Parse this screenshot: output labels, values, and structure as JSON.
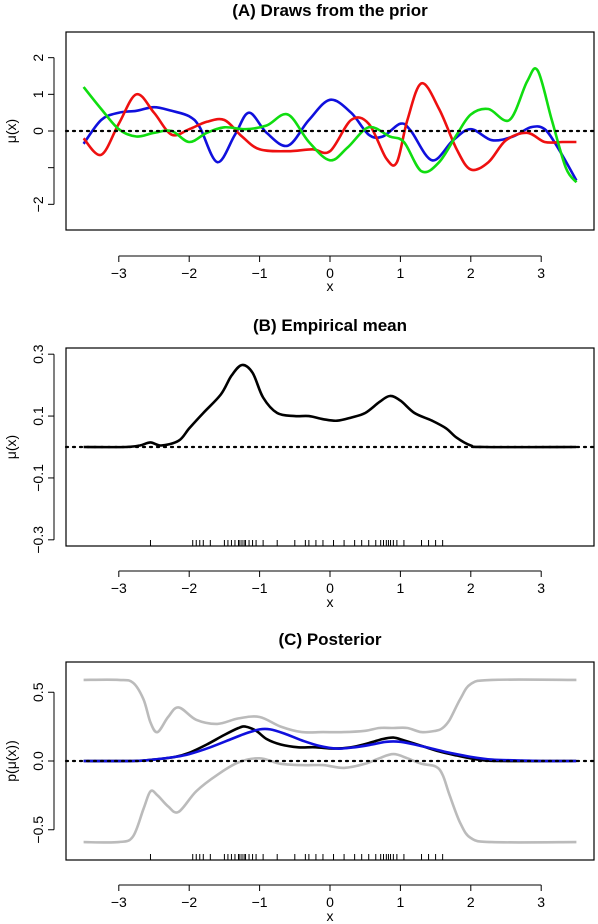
{
  "chart_data": [
    {
      "panel": "A",
      "type": "line",
      "title": "(A) Draws from the prior",
      "xlabel": "x",
      "ylabel": "μ(x)",
      "xlim": [
        -3.75,
        3.75
      ],
      "ylim": [
        -2.7,
        2.7
      ],
      "x_ticks": [
        -3,
        -2,
        -1,
        0,
        1,
        2,
        3
      ],
      "x_tick_labels": [
        "−3",
        "−2",
        "−1",
        "0",
        "1",
        "2",
        "3"
      ],
      "y_ticks": [
        -2,
        -1,
        0,
        1,
        2
      ],
      "y_tick_labels": [
        "−2",
        "",
        "0",
        "1",
        "2"
      ],
      "reference_line": 0,
      "series": [
        {
          "color": "#1010dd",
          "x": [
            -3.5,
            -3.25,
            -3.0,
            -2.75,
            -2.5,
            -2.25,
            -2.0,
            -1.85,
            -1.6,
            -1.35,
            -1.15,
            -0.9,
            -0.6,
            -0.3,
            0.0,
            0.3,
            0.55,
            0.75,
            1.0,
            1.15,
            1.45,
            1.75,
            2.0,
            2.3,
            2.6,
            2.85,
            3.05,
            3.25,
            3.5
          ],
          "y": [
            -0.35,
            0.3,
            0.5,
            0.55,
            0.65,
            0.55,
            0.4,
            0.1,
            -0.85,
            -0.1,
            0.5,
            -0.05,
            -0.4,
            0.3,
            0.85,
            0.5,
            -0.1,
            -0.15,
            0.2,
            0.0,
            -0.8,
            -0.25,
            0.05,
            -0.25,
            -0.15,
            0.1,
            0.05,
            -0.5,
            -1.35
          ]
        },
        {
          "color": "#ee1010",
          "x": [
            -3.5,
            -3.25,
            -3.0,
            -2.75,
            -2.5,
            -2.25,
            -2.0,
            -1.75,
            -1.5,
            -1.25,
            -1.0,
            -0.6,
            -0.25,
            0.0,
            0.3,
            0.55,
            0.8,
            0.95,
            1.1,
            1.3,
            1.55,
            1.8,
            2.0,
            2.25,
            2.5,
            2.8,
            3.05,
            3.3,
            3.5
          ],
          "y": [
            -0.2,
            -0.65,
            0.2,
            1.0,
            0.5,
            -0.1,
            0.05,
            0.25,
            0.3,
            -0.15,
            -0.5,
            -0.55,
            -0.5,
            -0.55,
            0.3,
            0.2,
            -0.75,
            -0.85,
            0.3,
            1.3,
            0.6,
            -0.5,
            -1.05,
            -0.85,
            -0.25,
            -0.05,
            -0.3,
            -0.3,
            -0.3
          ]
        },
        {
          "color": "#10dd10",
          "x": [
            -3.5,
            -3.25,
            -3.0,
            -2.75,
            -2.5,
            -2.25,
            -2.0,
            -1.75,
            -1.5,
            -1.2,
            -0.9,
            -0.6,
            -0.3,
            0.0,
            0.25,
            0.55,
            0.85,
            1.05,
            1.3,
            1.55,
            1.8,
            2.0,
            2.25,
            2.55,
            2.8,
            2.95,
            3.15,
            3.35,
            3.5
          ],
          "y": [
            1.2,
            0.6,
            0.05,
            -0.15,
            -0.05,
            0.0,
            -0.3,
            -0.05,
            0.1,
            0.05,
            0.15,
            0.45,
            -0.3,
            -0.8,
            -0.45,
            0.1,
            -0.15,
            -0.3,
            -1.1,
            -0.85,
            -0.1,
            0.45,
            0.6,
            0.3,
            1.35,
            1.65,
            0.3,
            -1.0,
            -1.4
          ]
        }
      ]
    },
    {
      "panel": "B",
      "type": "line",
      "title": "(B) Empirical mean",
      "xlabel": "x",
      "ylabel": "μ(x)",
      "xlim": [
        -3.75,
        3.75
      ],
      "ylim": [
        -0.32,
        0.32
      ],
      "x_ticks": [
        -3,
        -2,
        -1,
        0,
        1,
        2,
        3
      ],
      "x_tick_labels": [
        "−3",
        "−2",
        "−1",
        "0",
        "1",
        "2",
        "3"
      ],
      "y_ticks": [
        -0.3,
        -0.1,
        0.1,
        0.3
      ],
      "y_tick_labels": [
        "−0.3",
        "−0.1",
        "0.1",
        "0.3"
      ],
      "reference_line": 0,
      "series": [
        {
          "color": "#000000",
          "x": [
            -3.5,
            -2.9,
            -2.7,
            -2.55,
            -2.4,
            -2.15,
            -2.0,
            -1.8,
            -1.55,
            -1.4,
            -1.25,
            -1.1,
            -0.95,
            -0.75,
            -0.5,
            -0.3,
            -0.1,
            0.1,
            0.3,
            0.5,
            0.7,
            0.85,
            1.0,
            1.2,
            1.45,
            1.65,
            1.8,
            2.0,
            2.2,
            3.5
          ],
          "y": [
            0.0,
            0.0,
            0.005,
            0.015,
            0.005,
            0.02,
            0.06,
            0.11,
            0.17,
            0.23,
            0.265,
            0.24,
            0.16,
            0.11,
            0.1,
            0.1,
            0.09,
            0.085,
            0.095,
            0.11,
            0.145,
            0.165,
            0.15,
            0.11,
            0.085,
            0.06,
            0.03,
            0.005,
            0.0,
            0.0
          ]
        }
      ],
      "rug_x": [
        -2.55,
        -1.95,
        -1.9,
        -1.85,
        -1.8,
        -1.7,
        -1.5,
        -1.45,
        -1.4,
        -1.35,
        -1.3,
        -1.28,
        -1.25,
        -1.22,
        -1.2,
        -1.15,
        -1.1,
        -1.05,
        -0.95,
        -0.75,
        -0.5,
        -0.35,
        -0.3,
        -0.2,
        -0.1,
        0.05,
        0.2,
        0.35,
        0.45,
        0.55,
        0.65,
        0.72,
        0.76,
        0.8,
        0.83,
        0.86,
        0.9,
        0.95,
        1.05,
        1.3,
        1.4,
        1.5,
        1.6
      ]
    },
    {
      "panel": "C",
      "type": "line",
      "title": "(C) Posterior",
      "xlabel": "x",
      "ylabel": "p(μ(x))",
      "xlim": [
        -3.75,
        3.75
      ],
      "ylim": [
        -0.72,
        0.72
      ],
      "x_ticks": [
        -3,
        -2,
        -1,
        0,
        1,
        2,
        3
      ],
      "x_tick_labels": [
        "−3",
        "−2",
        "−1",
        "0",
        "1",
        "2",
        "3"
      ],
      "y_ticks": [
        -0.5,
        0.0,
        0.5
      ],
      "y_tick_labels": [
        "−0.5",
        "0.0",
        "0.5"
      ],
      "reference_line": 0,
      "series": [
        {
          "color": "#bbbbbb",
          "x": [
            -3.5,
            -3.0,
            -2.8,
            -2.65,
            -2.55,
            -2.45,
            -2.3,
            -2.15,
            -1.9,
            -1.6,
            -1.3,
            -1.0,
            -0.7,
            -0.4,
            -0.1,
            0.2,
            0.5,
            0.7,
            0.9,
            1.1,
            1.3,
            1.5,
            1.6,
            1.7,
            1.85,
            2.0,
            2.3,
            3.5
          ],
          "y": [
            0.59,
            0.59,
            0.57,
            0.45,
            0.28,
            0.21,
            0.32,
            0.39,
            0.3,
            0.27,
            0.31,
            0.32,
            0.25,
            0.21,
            0.21,
            0.21,
            0.22,
            0.24,
            0.24,
            0.24,
            0.21,
            0.22,
            0.24,
            0.3,
            0.45,
            0.56,
            0.59,
            0.59
          ]
        },
        {
          "color": "#bbbbbb",
          "x": [
            -3.5,
            -3.0,
            -2.8,
            -2.65,
            -2.55,
            -2.45,
            -2.3,
            -2.15,
            -1.9,
            -1.6,
            -1.3,
            -1.0,
            -0.7,
            -0.4,
            -0.1,
            0.2,
            0.5,
            0.7,
            0.9,
            1.1,
            1.3,
            1.5,
            1.6,
            1.7,
            1.85,
            2.0,
            2.3,
            3.5
          ],
          "y": [
            -0.59,
            -0.59,
            -0.55,
            -0.35,
            -0.22,
            -0.25,
            -0.33,
            -0.37,
            -0.22,
            -0.1,
            -0.01,
            0.02,
            -0.02,
            -0.03,
            -0.03,
            -0.05,
            -0.02,
            0.02,
            0.05,
            0.02,
            -0.02,
            -0.04,
            -0.1,
            -0.25,
            -0.45,
            -0.56,
            -0.59,
            -0.59
          ]
        },
        {
          "color": "#000000",
          "x": [
            -3.5,
            -2.8,
            -2.5,
            -2.2,
            -2.0,
            -1.75,
            -1.5,
            -1.3,
            -1.2,
            -1.05,
            -0.9,
            -0.7,
            -0.45,
            -0.2,
            0.05,
            0.3,
            0.55,
            0.75,
            0.9,
            1.05,
            1.3,
            1.55,
            1.8,
            2.1,
            2.4,
            3.5
          ],
          "y": [
            0.0,
            0.0,
            0.01,
            0.03,
            0.06,
            0.12,
            0.19,
            0.24,
            0.25,
            0.22,
            0.16,
            0.12,
            0.1,
            0.1,
            0.09,
            0.1,
            0.13,
            0.16,
            0.17,
            0.15,
            0.11,
            0.07,
            0.04,
            0.01,
            0.0,
            0.0
          ]
        },
        {
          "color": "#1010dd",
          "x": [
            -3.5,
            -2.8,
            -2.5,
            -2.2,
            -2.0,
            -1.7,
            -1.4,
            -1.2,
            -1.0,
            -0.85,
            -0.65,
            -0.4,
            -0.15,
            0.1,
            0.35,
            0.6,
            0.8,
            1.0,
            1.2,
            1.45,
            1.7,
            2.0,
            2.3,
            2.6,
            3.0,
            3.5
          ],
          "y": [
            0.0,
            0.0,
            0.01,
            0.03,
            0.05,
            0.1,
            0.16,
            0.2,
            0.23,
            0.23,
            0.2,
            0.15,
            0.11,
            0.09,
            0.1,
            0.12,
            0.14,
            0.14,
            0.12,
            0.09,
            0.06,
            0.03,
            0.01,
            0.005,
            0.0,
            0.0
          ]
        }
      ],
      "rug_x": [
        -2.55,
        -1.95,
        -1.9,
        -1.85,
        -1.8,
        -1.7,
        -1.5,
        -1.45,
        -1.4,
        -1.35,
        -1.3,
        -1.28,
        -1.25,
        -1.22,
        -1.2,
        -1.15,
        -1.1,
        -1.05,
        -0.95,
        -0.75,
        -0.5,
        -0.35,
        -0.3,
        -0.2,
        -0.1,
        0.05,
        0.2,
        0.35,
        0.45,
        0.55,
        0.65,
        0.72,
        0.76,
        0.8,
        0.83,
        0.86,
        0.9,
        0.95,
        1.05,
        1.3,
        1.4,
        1.5,
        1.6
      ]
    }
  ]
}
